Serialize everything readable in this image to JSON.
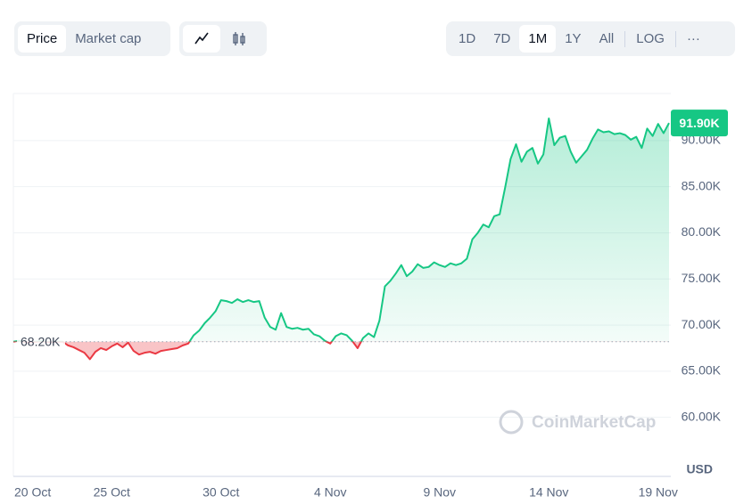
{
  "controls": {
    "tabs": [
      "Price",
      "Market cap"
    ],
    "ranges": [
      "1D",
      "7D",
      "1M",
      "1Y",
      "All",
      "LOG",
      "···"
    ]
  },
  "chart_data": {
    "type": "line",
    "categories": [
      "20 Oct",
      null,
      null,
      null,
      null,
      null,
      null,
      null,
      null,
      null,
      null,
      null,
      null,
      null,
      null,
      null,
      null,
      null,
      "25 Oct",
      null,
      null,
      null,
      null,
      null,
      null,
      null,
      null,
      null,
      null,
      null,
      null,
      null,
      null,
      null,
      null,
      null,
      null,
      null,
      "30 Oct",
      null,
      null,
      null,
      null,
      null,
      null,
      null,
      null,
      null,
      null,
      null,
      null,
      null,
      null,
      null,
      null,
      null,
      null,
      null,
      "4 Nov",
      null,
      null,
      null,
      null,
      null,
      null,
      null,
      null,
      null,
      null,
      null,
      null,
      null,
      null,
      null,
      null,
      null,
      null,
      null,
      "9 Nov",
      null,
      null,
      null,
      null,
      null,
      null,
      null,
      null,
      null,
      null,
      null,
      null,
      null,
      null,
      null,
      null,
      null,
      null,
      null,
      "14 Nov",
      null,
      null,
      null,
      null,
      null,
      null,
      null,
      null,
      null,
      null,
      null,
      null,
      null,
      null,
      null,
      null,
      null,
      null,
      null,
      "19 Nov",
      null,
      null
    ],
    "values": [
      68200,
      68300,
      68200,
      68100,
      68200,
      68250,
      68200,
      68150,
      68200,
      68200,
      67800,
      67600,
      67300,
      67000,
      66300,
      67100,
      67500,
      67300,
      67700,
      68000,
      67600,
      68100,
      67200,
      66800,
      67000,
      67100,
      66900,
      67200,
      67300,
      67400,
      67500,
      67800,
      68000,
      68900,
      69400,
      70200,
      70800,
      71500,
      72700,
      72600,
      72400,
      72800,
      72500,
      72700,
      72500,
      72600,
      70800,
      69800,
      69500,
      71300,
      69800,
      69600,
      69700,
      69500,
      69600,
      69000,
      68800,
      68300,
      68000,
      68800,
      69100,
      68900,
      68300,
      67500,
      68600,
      69100,
      68700,
      70500,
      74200,
      74800,
      75600,
      76500,
      75300,
      75800,
      76600,
      76200,
      76300,
      76800,
      76500,
      76300,
      76700,
      76500,
      76700,
      77200,
      79300,
      80000,
      80900,
      80600,
      81800,
      82000,
      84900,
      88000,
      89600,
      87700,
      88800,
      89200,
      87500,
      88500,
      92400,
      89500,
      90300,
      90500,
      88800,
      87600,
      88300,
      89000,
      90200,
      91200,
      90900,
      91000,
      90700,
      90800,
      90600,
      90100,
      90400,
      89200,
      91300,
      90500,
      91800,
      90800,
      91900
    ],
    "color": "#16c784",
    "down_color": "#ea3943",
    "baseline": 68200,
    "baseline_label": "68.20K",
    "last_value_label": "91.90K",
    "ylim": [
      53600,
      95100
    ],
    "yticks": [
      {
        "value": 60000,
        "label": "60.00K"
      },
      {
        "value": 65000,
        "label": "65.00K"
      },
      {
        "value": 70000,
        "label": "70.00K"
      },
      {
        "value": 75000,
        "label": "75.00K"
      },
      {
        "value": 80000,
        "label": "80.00K"
      },
      {
        "value": 85000,
        "label": "85.00K"
      },
      {
        "value": 90000,
        "label": "90.00K"
      }
    ],
    "y_unit": "USD",
    "watermark": "CoinMarketCap",
    "grid": true
  }
}
